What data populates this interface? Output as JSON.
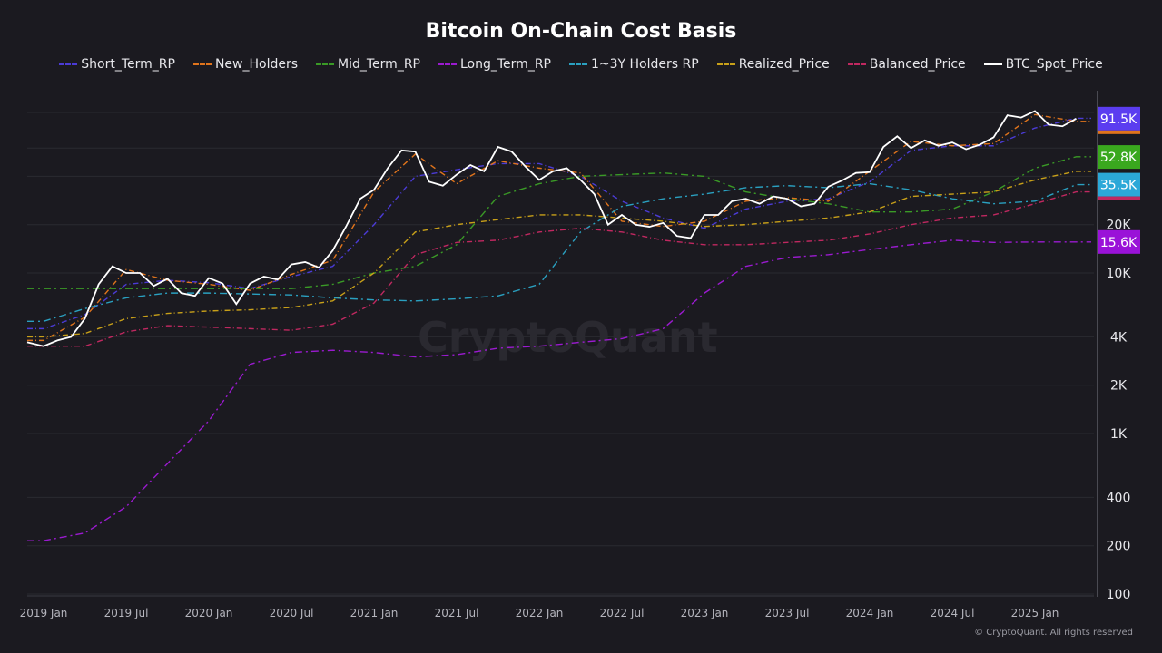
{
  "chart_data": {
    "type": "line",
    "title": "Bitcoin On-Chain Cost Basis",
    "y_scale": "log",
    "ylim": [
      100,
      135000
    ],
    "y_ticks": [
      {
        "v": 100,
        "l": "100"
      },
      {
        "v": 200,
        "l": "200"
      },
      {
        "v": 400,
        "l": "400"
      },
      {
        "v": 1000,
        "l": "1K"
      },
      {
        "v": 2000,
        "l": "2K"
      },
      {
        "v": 4000,
        "l": "4K"
      },
      {
        "v": 10000,
        "l": "10K"
      },
      {
        "v": 20000,
        "l": "20K"
      }
    ],
    "x_ticks": [
      "2019 Jan",
      "2019 Jul",
      "2020 Jan",
      "2020 Jul",
      "2021 Jan",
      "2021 Jul",
      "2022 Jan",
      "2022 Jul",
      "2023 Jan",
      "2023 Jul",
      "2024 Jan",
      "2024 Jul",
      "2025 Jan"
    ],
    "grid": true,
    "legend_position": "top",
    "series_quarterly_start": "2019 Jan",
    "series": [
      {
        "name": "Short_Term_RP",
        "color": "#4b3bd6",
        "values": [
          4500,
          5500,
          8500,
          9000,
          8700,
          8000,
          9500,
          11000,
          20000,
          40000,
          44000,
          48000,
          48000,
          40000,
          28000,
          22000,
          19000,
          25000,
          28000,
          29000,
          37000,
          58000,
          62000,
          62000,
          80000,
          92000
        ]
      },
      {
        "name": "New_Holders",
        "color": "#e0741c",
        "values": [
          3800,
          5300,
          10500,
          9000,
          8500,
          7800,
          9800,
          12000,
          32000,
          55000,
          36000,
          50000,
          45000,
          42000,
          21000,
          19500,
          21000,
          28000,
          29500,
          28000,
          43000,
          66000,
          62000,
          64000,
          97000,
          88000
        ]
      },
      {
        "name": "Mid_Term_RP",
        "color": "#3a9a26",
        "values": [
          8000,
          8000,
          8000,
          8000,
          8000,
          8000,
          8000,
          8500,
          10000,
          11000,
          15000,
          30000,
          36000,
          40000,
          41000,
          42000,
          40000,
          32000,
          29000,
          27000,
          24000,
          24000,
          25000,
          32000,
          45000,
          53000
        ]
      },
      {
        "name": "Long_Term_RP",
        "color": "#9b1ad0",
        "values": [
          215,
          240,
          350,
          650,
          1200,
          2700,
          3200,
          3300,
          3200,
          3000,
          3100,
          3400,
          3500,
          3700,
          3900,
          4500,
          7500,
          11000,
          12500,
          13000,
          14000,
          15000,
          16000,
          15500,
          15600,
          15600
        ]
      },
      {
        "name": "1~3Y Holders RP",
        "color": "#2aa0c0",
        "values": [
          5000,
          6000,
          7000,
          7500,
          7500,
          7400,
          7300,
          7000,
          6800,
          6700,
          6900,
          7200,
          8500,
          18000,
          26000,
          29000,
          31000,
          34000,
          35000,
          34000,
          36000,
          33000,
          29000,
          27000,
          28000,
          35500
        ]
      },
      {
        "name": "Realized_Price",
        "color": "#c8a019",
        "values": [
          4000,
          4200,
          5200,
          5600,
          5800,
          5900,
          6100,
          6700,
          10000,
          18000,
          20000,
          21500,
          23000,
          23000,
          22000,
          21000,
          19500,
          20000,
          21000,
          22000,
          24000,
          30000,
          31000,
          32000,
          38000,
          43000
        ]
      },
      {
        "name": "Balanced_Price",
        "color": "#c02860",
        "values": [
          3500,
          3500,
          4300,
          4700,
          4600,
          4500,
          4400,
          4800,
          6500,
          13000,
          15500,
          16000,
          18000,
          19000,
          18000,
          16000,
          15000,
          15000,
          15500,
          16000,
          17500,
          20000,
          22000,
          23000,
          27000,
          32000
        ]
      }
    ],
    "spot": {
      "name": "BTC_Spot_Price",
      "color": "#ffffff",
      "monthly_start": "2018 Dec",
      "values": [
        3700,
        3500,
        3800,
        4000,
        5200,
        8500,
        11000,
        10000,
        10000,
        8300,
        9200,
        7500,
        7200,
        9300,
        8600,
        6400,
        8600,
        9500,
        9100,
        11300,
        11700,
        10800,
        13800,
        19700,
        29000,
        33000,
        45000,
        58000,
        57000,
        37000,
        35000,
        41000,
        47000,
        43000,
        61000,
        57000,
        46000,
        38000,
        43000,
        45000,
        38000,
        31000,
        20000,
        23000,
        20000,
        19400,
        20500,
        17000,
        16500,
        23000,
        23000,
        28000,
        29000,
        27000,
        30000,
        29000,
        26000,
        27000,
        34500,
        37700,
        42000,
        42500,
        61000,
        71000,
        60000,
        67000,
        62000,
        65000,
        59000,
        63000,
        70000,
        96000,
        93000,
        102000,
        84000,
        82000,
        91500
      ]
    },
    "last_value_labels": [
      {
        "label": "91.5K",
        "value": 91500,
        "color": "#5b3df0",
        "under": "#e0741c"
      },
      {
        "label": "52.8K",
        "value": 52800,
        "color": "#3aa81e"
      },
      {
        "label": "35.5K",
        "value": 35500,
        "color": "#2ba8d8",
        "under": "#c02860"
      },
      {
        "label": "15.6K",
        "value": 15600,
        "color": "#9a12d8"
      }
    ]
  },
  "watermark": "CryptoQuant",
  "copyright": "© CryptoQuant. All rights reserved"
}
